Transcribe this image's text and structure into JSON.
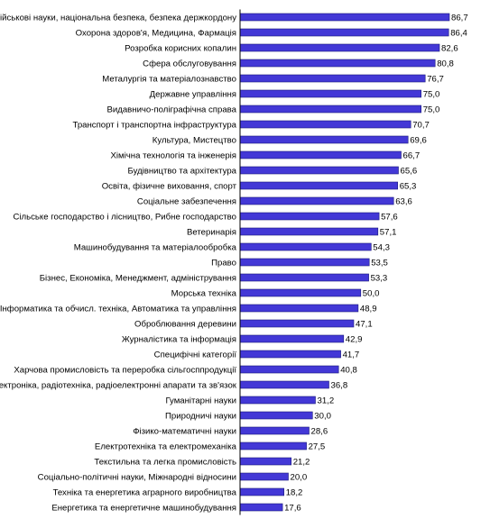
{
  "chart_data": {
    "type": "bar",
    "orientation": "horizontal",
    "title": "",
    "xlabel": "",
    "ylabel": "",
    "xlim": [
      0,
      100
    ],
    "grid": false,
    "legend": "none",
    "bar_color": "#4338d6",
    "bar_border_color": "#1a1a7a",
    "categories": [
      "Військові науки, національна безпека, безпека держкордону",
      "Охорона здоров'я, Медицина, Фармація",
      "Розробка корисних копалин",
      "Сфера обслуговування",
      "Металургія та матеріалознавство",
      "Державне управління",
      "Видавничо-поліграфічна справа",
      "Транспорт і транспортна інфраструктура",
      "Культура, Мистецтво",
      "Хімічна технологія та інженерія",
      "Будівництво та архітектура",
      "Освіта, фізичне виховання, спорт",
      "Соціальне забезпечення",
      "Сільське господарство і лісництво, Рибне господарство",
      "Ветеринарія",
      "Машинобудування та матеріалообробка",
      "Право",
      "Бізнес, Економіка, Менеджмент, адміністрування",
      "Морська техніка",
      "Інформатика та обчисл. техніка, Автоматика та управління",
      "Оброблювання деревини",
      "Журналістика та інформація",
      "Специфічні категорії",
      "Харчова промисловість та переробка сільгосппродукції",
      "Електроніка, радіотехніка, радіоелектронні апарати та зв'язок",
      "Гуманітарні науки",
      "Природничі науки",
      "Фізико-математичні науки",
      "Електротехніка та електромеханіка",
      "Текстильна та легка промисловість",
      "Соціально-політичні науки, Міжнародні відносини",
      "Техніка та енергетика аграрного виробництва",
      "Енергетика та енергетичне машинобудування"
    ],
    "values": [
      86.7,
      86.4,
      82.6,
      80.8,
      76.7,
      75.0,
      75.0,
      70.7,
      69.6,
      66.7,
      65.6,
      65.3,
      63.6,
      57.6,
      57.1,
      54.3,
      53.5,
      53.3,
      50.0,
      48.9,
      47.1,
      42.9,
      41.7,
      40.8,
      36.8,
      31.2,
      30.0,
      28.6,
      27.5,
      21.2,
      20.0,
      18.2,
      17.6
    ],
    "value_labels": [
      "86,7",
      "86,4",
      "82,6",
      "80,8",
      "76,7",
      "75,0",
      "75,0",
      "70,7",
      "69,6",
      "66,7",
      "65,6",
      "65,3",
      "63,6",
      "57,6",
      "57,1",
      "54,3",
      "53,5",
      "53,3",
      "50,0",
      "48,9",
      "47,1",
      "42,9",
      "41,7",
      "40,8",
      "36,8",
      "31,2",
      "30,0",
      "28,6",
      "27,5",
      "21,2",
      "20,0",
      "18,2",
      "17,6"
    ]
  }
}
